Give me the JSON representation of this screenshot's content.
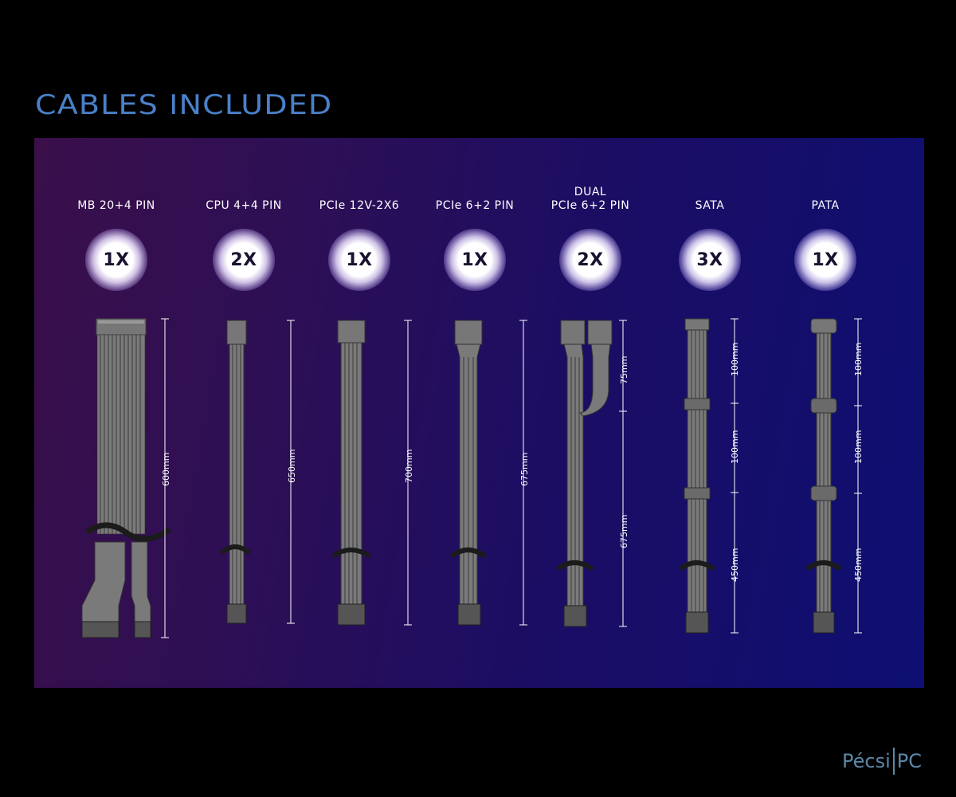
{
  "title": "CABLES INCLUDED",
  "cables": [
    {
      "label_lines": [
        "MB 20+4 PIN"
      ],
      "quantity": "1X",
      "lengths": [
        "600mm"
      ]
    },
    {
      "label_lines": [
        "CPU 4+4 PIN"
      ],
      "quantity": "2X",
      "lengths": [
        "650mm"
      ]
    },
    {
      "label_lines": [
        "PCIe 12V-2X6"
      ],
      "quantity": "1X",
      "lengths": [
        "700mm"
      ]
    },
    {
      "label_lines": [
        "PCIe 6+2 PIN"
      ],
      "quantity": "1X",
      "lengths": [
        "675mm"
      ]
    },
    {
      "label_lines": [
        "DUAL",
        "PCIe 6+2 PIN"
      ],
      "quantity": "2X",
      "lengths": [
        "75mm",
        "675mm"
      ]
    },
    {
      "label_lines": [
        "SATA"
      ],
      "quantity": "3X",
      "lengths": [
        "100mm",
        "100mm",
        "450mm"
      ]
    },
    {
      "label_lines": [
        "PATA"
      ],
      "quantity": "1X",
      "lengths": [
        "100mm",
        "100mm",
        "450mm"
      ]
    }
  ],
  "brand": {
    "left": "Pécsi",
    "right": "PC"
  },
  "colors": {
    "title": "#4a80c8",
    "cable": "#6e6e6e",
    "cable_dark": "#3c3c3c",
    "brand": "#5b89a8"
  }
}
